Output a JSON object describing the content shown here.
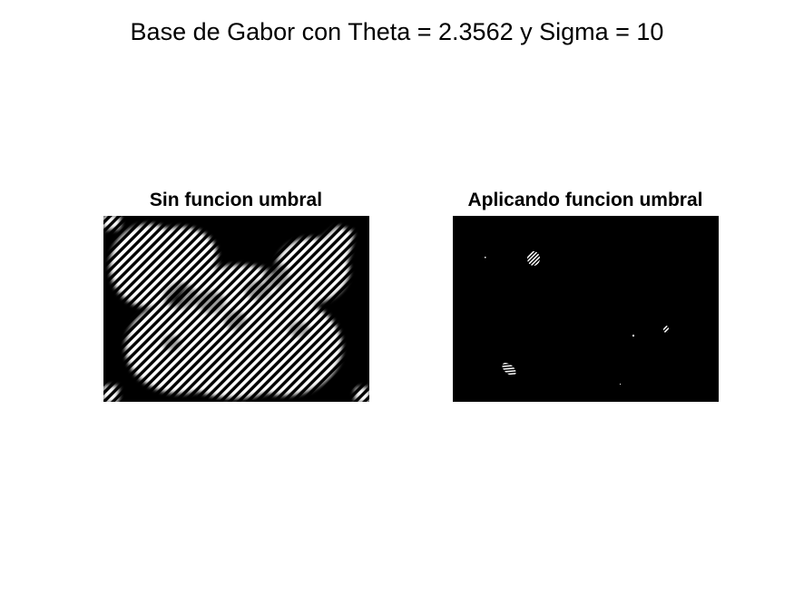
{
  "figure": {
    "title": "Base de Gabor con Theta = 2.3562 y Sigma = 10",
    "background_color": "#ffffff"
  },
  "panels": [
    {
      "title": "Sin funcion umbral",
      "content": "gabor-filtered-butterfly",
      "colors": {
        "background": "#000000",
        "stripes": "#ffffff"
      }
    },
    {
      "title": "Aplicando funcion umbral",
      "content": "thresholded-sparse-blobs",
      "colors": {
        "background": "#000000",
        "blobs": "#ffffff"
      }
    }
  ]
}
